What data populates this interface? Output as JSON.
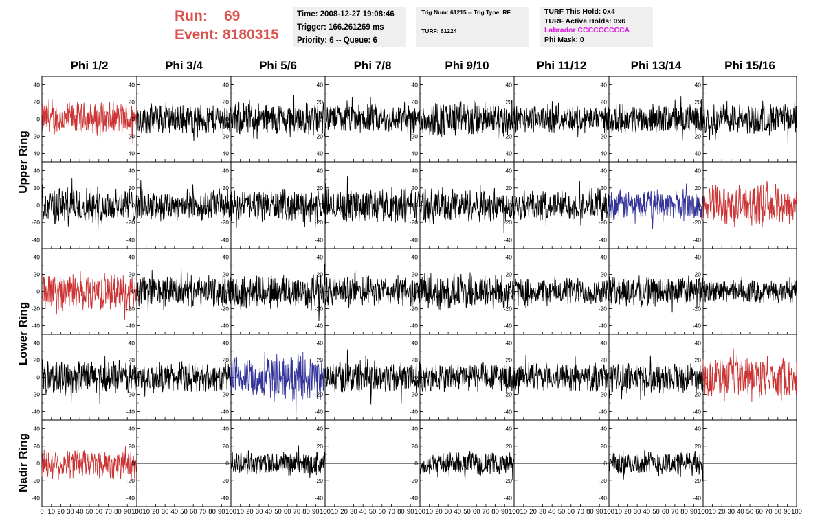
{
  "header": {
    "run_label": "Run:",
    "run_value": "69",
    "event_label": "Event:",
    "event_value": "8180315"
  },
  "info_box_1": {
    "time": "Time: 2008-12-27 19:08:46",
    "trigger": "Trigger: 166.261269 ms",
    "priority": "Priority: 6 -- Queue: 6"
  },
  "info_box_2": {
    "trig_line": "Trig Num: 61215 -- Trig Type: RF",
    "turf_line": "TURF: 61224"
  },
  "info_box_3": {
    "this_hold": "TURF This Hold: 0x4",
    "active_holds": "TURF Active Holds: 0x6",
    "labrador": "Labrador CCCCCCCCCA",
    "phi_mask": "Phi Mask: 0"
  },
  "colors": {
    "black": "#000000",
    "red": "#cc3333",
    "blue": "#333399",
    "title_red": "#d9534f",
    "magenta": "#e020e0",
    "info_bg": "#efefef"
  },
  "chart_data": {
    "type": "line",
    "columns": [
      "Phi 1/2",
      "Phi 3/4",
      "Phi 5/6",
      "Phi 7/8",
      "Phi 9/10",
      "Phi 11/12",
      "Phi 13/14",
      "Phi 15/16"
    ],
    "row_labels": [
      {
        "label": "Upper Ring",
        "rows": [
          0,
          1
        ]
      },
      {
        "label": "Lower Ring",
        "rows": [
          2,
          3
        ]
      },
      {
        "label": "Nadir Ring",
        "rows": [
          4
        ]
      }
    ],
    "xlim": [
      0,
      100
    ],
    "ylim": [
      -50,
      50
    ],
    "x_ticks": [
      0,
      10,
      20,
      30,
      40,
      50,
      60,
      70,
      80,
      90,
      100
    ],
    "y_ticks": [
      -40,
      -20,
      0,
      20,
      40
    ],
    "waveform_samples": 260,
    "panels": [
      [
        {
          "color": "red",
          "amp": 22,
          "xmax": 100
        },
        {
          "color": "black",
          "amp": 20,
          "xmax": 100
        },
        {
          "color": "black",
          "amp": 22,
          "xmax": 100
        },
        {
          "color": "black",
          "amp": 19,
          "xmax": 100
        },
        {
          "color": "black",
          "amp": 24,
          "xmax": 100
        },
        {
          "color": "black",
          "amp": 18,
          "xmax": 100
        },
        {
          "color": "black",
          "amp": 19,
          "xmax": 100
        },
        {
          "color": "black",
          "amp": 20,
          "xmax": 100
        }
      ],
      [
        {
          "color": "black",
          "amp": 24,
          "xmax": 100
        },
        {
          "color": "black",
          "amp": 20,
          "xmax": 100
        },
        {
          "color": "black",
          "amp": 20,
          "xmax": 100
        },
        {
          "color": "black",
          "amp": 22,
          "xmax": 100
        },
        {
          "color": "black",
          "amp": 22,
          "xmax": 100
        },
        {
          "color": "black",
          "amp": 20,
          "xmax": 100
        },
        {
          "color": "blue",
          "amp": 20,
          "xmax": 100
        },
        {
          "color": "red",
          "amp": 26,
          "xmax": 100
        }
      ],
      [
        {
          "color": "red",
          "amp": 24,
          "xmax": 100
        },
        {
          "color": "black",
          "amp": 20,
          "xmax": 100
        },
        {
          "color": "black",
          "amp": 24,
          "xmax": 100
        },
        {
          "color": "black",
          "amp": 20,
          "xmax": 100
        },
        {
          "color": "black",
          "amp": 24,
          "xmax": 100
        },
        {
          "color": "black",
          "amp": 18,
          "xmax": 100
        },
        {
          "color": "black",
          "amp": 20,
          "xmax": 100
        },
        {
          "color": "black",
          "amp": 15,
          "xmax": 100
        }
      ],
      [
        {
          "color": "black",
          "amp": 22,
          "xmax": 100
        },
        {
          "color": "black",
          "amp": 19,
          "xmax": 100
        },
        {
          "color": "blue",
          "amp": 28,
          "xmax": 100
        },
        {
          "color": "black",
          "amp": 22,
          "xmax": 100
        },
        {
          "color": "black",
          "amp": 20,
          "xmax": 100
        },
        {
          "color": "black",
          "amp": 18,
          "xmax": 100
        },
        {
          "color": "black",
          "amp": 20,
          "xmax": 100
        },
        {
          "color": "red",
          "amp": 26,
          "xmax": 100
        }
      ],
      [
        {
          "color": "red",
          "amp": 20,
          "xmax": 100
        },
        {
          "color": "black",
          "amp": 0,
          "xmax": 100
        },
        {
          "color": "black",
          "amp": 15,
          "xmax": 100
        },
        {
          "color": "black",
          "amp": 0,
          "xmax": 100
        },
        {
          "color": "black",
          "amp": 14,
          "xmax": 100
        },
        {
          "color": "black",
          "amp": 0,
          "xmax": 100
        },
        {
          "color": "black",
          "amp": 16,
          "xmax": 100
        },
        {
          "color": "black",
          "amp": 0,
          "xmax": 100
        }
      ]
    ]
  }
}
